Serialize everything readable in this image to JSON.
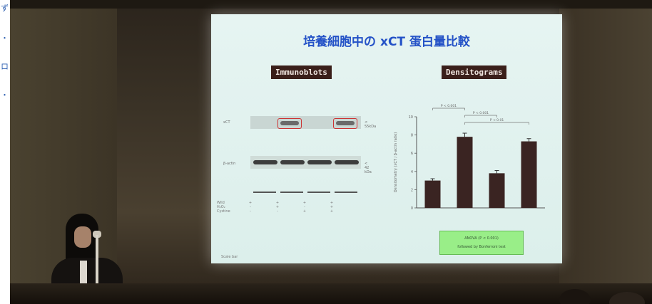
{
  "edge_glyphs": [
    "ず",
    "・",
    "ロ",
    "・"
  ],
  "slide": {
    "title": "培養細胞中の xCT 蛋白量比較",
    "immunoblots_label": "Immunoblots",
    "densitograms_label": "Densitograms",
    "blot": {
      "row_labels": [
        "xCT",
        "β-actin"
      ],
      "size_labels": [
        "< 55kDa",
        "< 42 kDa"
      ],
      "treat_rows": [
        {
          "label": "Wild",
          "marks": [
            "+",
            "+",
            "+",
            "+"
          ]
        },
        {
          "label": "H₂O₂",
          "marks": [
            "-",
            "+",
            "-",
            "+"
          ]
        },
        {
          "label": "Cystine",
          "marks": [
            "-",
            "-",
            "+",
            "+"
          ]
        }
      ]
    },
    "green_box_text": [
      "ANOVA (P < 0.001)",
      "followed by Bonferroni test"
    ],
    "corner_mark": "Scale bar"
  },
  "chart_data": {
    "type": "bar",
    "categories": [
      "1",
      "2",
      "3",
      "4"
    ],
    "values": [
      3.0,
      7.8,
      3.8,
      7.3
    ],
    "errors": [
      0.2,
      0.4,
      0.3,
      0.3
    ],
    "ylim": [
      0,
      10
    ],
    "yticks": [
      0,
      2,
      4,
      6,
      8,
      10
    ],
    "ylabel": "Densitometry (xCT / β-actin ratio)",
    "significance": [
      {
        "from": 0,
        "to": 1,
        "label": "P < 0.001"
      },
      {
        "from": 1,
        "to": 2,
        "label": "P < 0.001"
      },
      {
        "from": 1,
        "to": 3,
        "label": "P < 0.01"
      }
    ],
    "bar_color": "#3a2422"
  },
  "colors": {
    "title_blue": "#2452c7",
    "tag_bg": "#3a1f1a",
    "slide_bg": "#e2f2ef",
    "green_box": "#99ee88"
  }
}
